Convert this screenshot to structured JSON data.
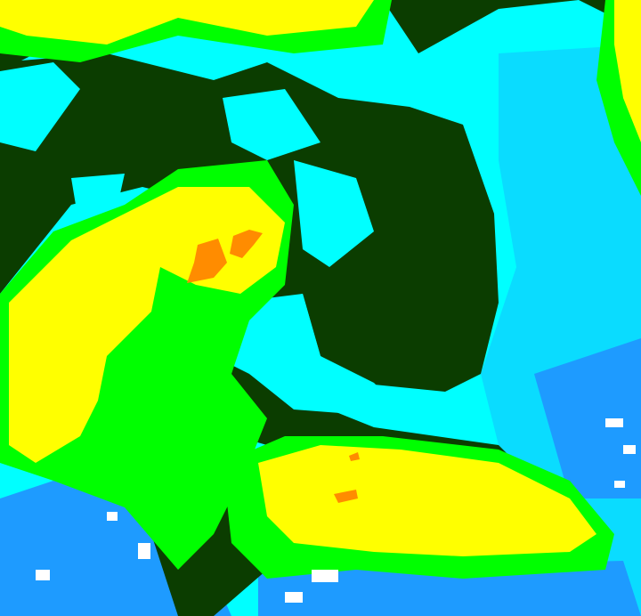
{
  "image": {
    "kind": "enhanced infrared satellite cloud image",
    "palette": {
      "background": "#00ffff",
      "dark_cloud": "#0b3d00",
      "green": "#00ff00",
      "yellow": "#ffff00",
      "orange": "#ff8c00",
      "blue": "#1e9bff",
      "white": "#ffffff"
    }
  }
}
